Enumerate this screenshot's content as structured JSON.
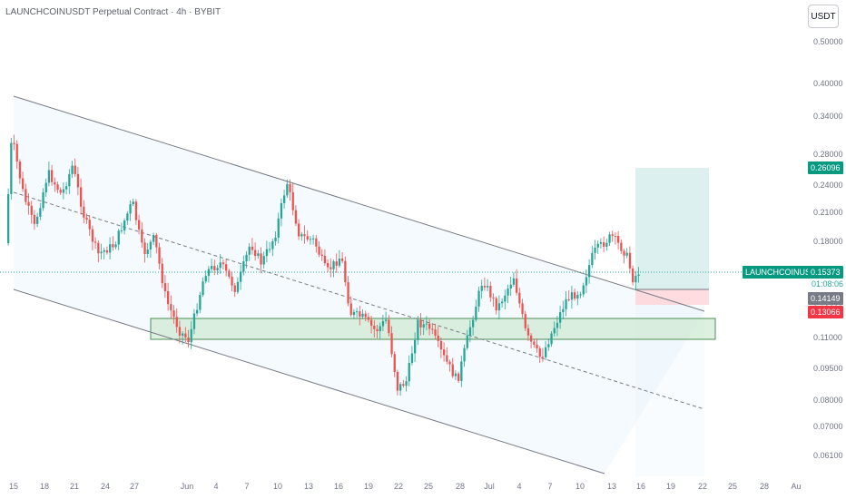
{
  "header": {
    "title": "LAUNCHCOINUSDT Perpetual Contract · 4h · BYBIT"
  },
  "currency_button": {
    "label": "USDT"
  },
  "colors": {
    "up": "#26a69a",
    "down": "#ef5350",
    "channel_line": "#787b86",
    "channel_fill": "#e3f2fd",
    "zone_fill": "#c8e6c9",
    "target_fill": "#b2dfdb",
    "stop_fill": "#ffcdd2",
    "current_price_line": "#26a69a"
  },
  "price_axis": {
    "ticks": [
      "0.50000",
      "0.40000",
      "0.34000",
      "0.28000",
      "0.24000",
      "0.21000",
      "0.18000",
      "0.15000",
      "0.13000",
      "0.11000",
      "0.09500",
      "0.08000",
      "0.07000",
      "0.06100"
    ]
  },
  "price_tags": {
    "target": "0.26096",
    "symbol": "LAUNCHCOINUSDT.P",
    "current": "0.15373",
    "countdown": "01:08:06",
    "entry": "0.14149",
    "stop": "0.13066"
  },
  "time_axis": {
    "ticks": [
      "15",
      "18",
      "21",
      "24",
      "27",
      "Jun",
      "4",
      "7",
      "10",
      "13",
      "16",
      "19",
      "22",
      "25",
      "28",
      "Jul",
      "4",
      "7",
      "10",
      "13",
      "16",
      "19",
      "22",
      "25",
      "28",
      "Au"
    ]
  }
}
